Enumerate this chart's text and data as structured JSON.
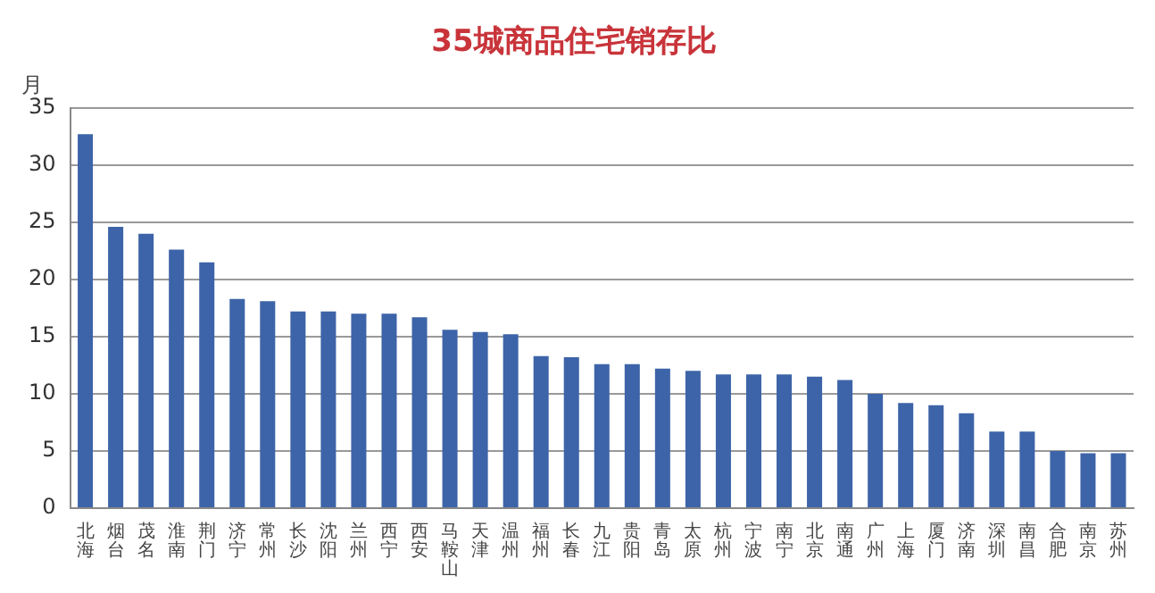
{
  "chart_data": {
    "type": "bar",
    "title": "35城商品住宅销存比",
    "ylabel": "月",
    "categories": [
      "北海",
      "烟台",
      "茂名",
      "淮南",
      "荆门",
      "济宁",
      "常州",
      "长沙",
      "沈阳",
      "兰州",
      "西宁",
      "西安",
      "马鞍山",
      "天津",
      "温州",
      "福州",
      "长春",
      "九江",
      "贵阳",
      "青岛",
      "太原",
      "杭州",
      "宁波",
      "南宁",
      "北京",
      "南通",
      "广州",
      "上海",
      "厦门",
      "济南",
      "深圳",
      "南昌",
      "合肥",
      "南京",
      "苏州"
    ],
    "values": [
      32.7,
      24.6,
      24.0,
      22.6,
      21.5,
      18.3,
      18.1,
      17.2,
      17.2,
      17.0,
      17.0,
      16.7,
      15.6,
      15.4,
      15.2,
      13.3,
      13.2,
      12.6,
      12.6,
      12.2,
      12.0,
      11.7,
      11.7,
      11.7,
      11.5,
      11.2,
      10.0,
      9.2,
      9.0,
      8.3,
      6.7,
      6.7,
      5.0,
      4.8,
      4.8
    ],
    "color": "#3d64a8",
    "ylim": [
      0,
      35
    ],
    "yticks": [
      0,
      5,
      10,
      15,
      20,
      25,
      30,
      35
    ],
    "grid": "y"
  }
}
